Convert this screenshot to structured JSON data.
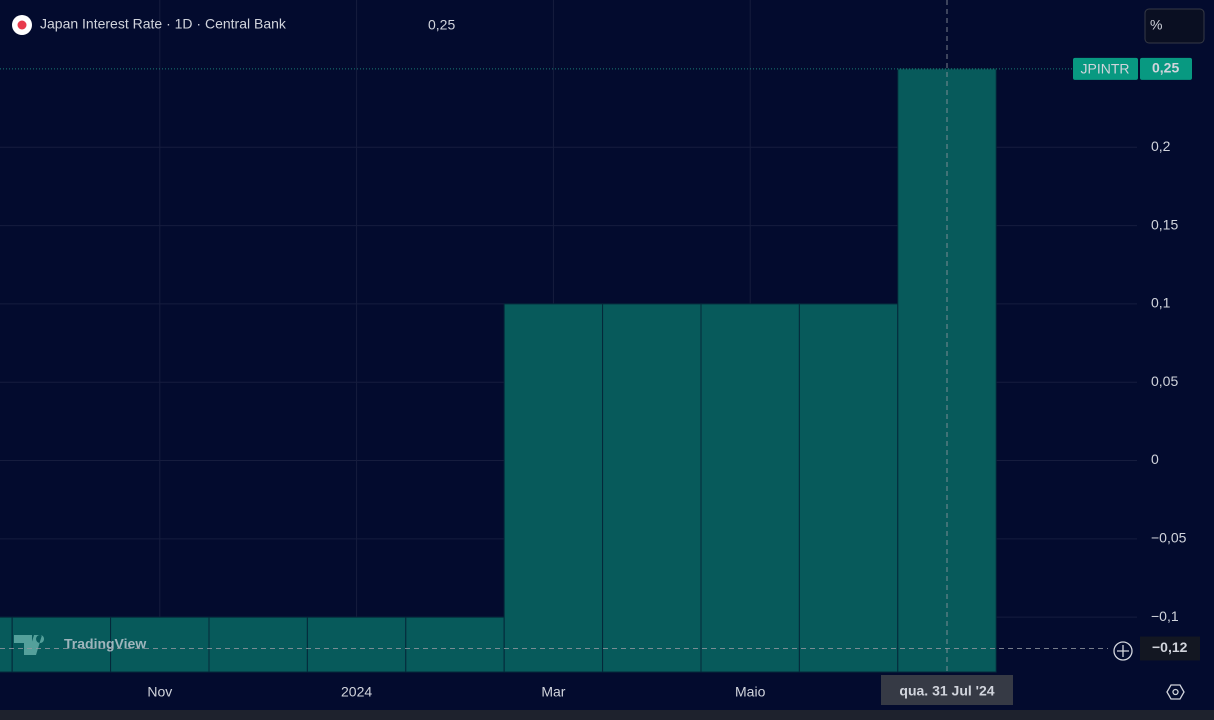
{
  "chart_data": {
    "type": "bar",
    "title": "Japan Interest Rate · 1D · Central Bank",
    "symbol": "JPINTR",
    "unit": "%",
    "watermark": "TradingView",
    "last_value": {
      "value": 0.25,
      "label": "0,25"
    },
    "categories": [
      null,
      null,
      "Nov",
      null,
      "2024",
      null,
      "Mar",
      null,
      "Maio",
      null,
      null
    ],
    "values": [
      -0.1,
      -0.1,
      -0.1,
      -0.1,
      -0.1,
      -0.1,
      0.1,
      0.1,
      0.1,
      0.1,
      0.25
    ],
    "color": "#075a5b",
    "ylim": [
      -0.135,
      0.294
    ],
    "yticks": [
      {
        "value": -0.1,
        "label": "−0,1"
      },
      {
        "value": -0.05,
        "label": "−0,05"
      },
      0,
      {
        "value": 0.05,
        "label": "0,05"
      },
      {
        "value": 0.1,
        "label": "0,1"
      },
      {
        "value": 0.15,
        "label": "0,15"
      },
      {
        "value": 0.2,
        "label": "0,2"
      }
    ],
    "grid": true,
    "crosshair": {
      "category_index": 10,
      "x_label": "qua. 31 Jul '24",
      "y": {
        "value": -0.12,
        "label": "−0,12"
      }
    }
  }
}
